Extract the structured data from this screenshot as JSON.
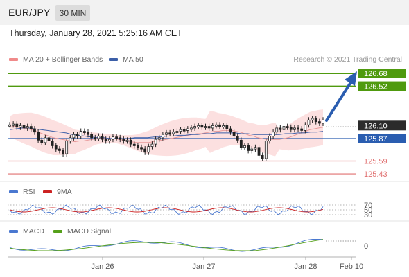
{
  "header": {
    "symbol": "EUR/JPY",
    "timeframe": "30 MIN"
  },
  "datetime": "Thursday, January 28, 2021 5:25:16 AM CET",
  "legend": {
    "ma20": "MA 20 + Bollinger Bands",
    "ma50": "MA 50",
    "credit": "Research © 2021 Trading Central",
    "rsi": "RSI",
    "rsi_ma": "9MA",
    "macd": "MACD",
    "macd_signal": "MACD Signal"
  },
  "colors": {
    "green": "#4f9a0e",
    "blue": "#2a5db0",
    "red": "#e07070",
    "dark": "#2b2b2b",
    "band": "#fbd5d5",
    "ma20": "#e89a9a",
    "ma50": "#3c5fa8",
    "candle": "#222222",
    "rsi": "#4a78d0",
    "rsi_ma": "#cc2222",
    "macd": "#4a78d0",
    "macd_signal": "#55a01a"
  },
  "chart_data": {
    "type": "line",
    "instrument": "EUR/JPY",
    "interval": "30 MIN",
    "ylim": [
      125.2,
      126.8
    ],
    "x_ticks": [
      "Jan 26",
      "Jan 27",
      "Jan 28",
      "Feb 10"
    ],
    "levels": [
      {
        "value": "126.68",
        "kind": "resistance"
      },
      {
        "value": "126.52",
        "kind": "resistance"
      },
      {
        "value": "126.10",
        "kind": "current"
      },
      {
        "value": "125.87",
        "kind": "pivot"
      },
      {
        "value": "125.59",
        "kind": "support"
      },
      {
        "value": "125.43",
        "kind": "support"
      }
    ],
    "close": [
      126.04,
      126.05,
      126.01,
      126.03,
      126.0,
      126.02,
      125.99,
      125.95,
      125.85,
      125.82,
      125.88,
      125.84,
      125.78,
      125.74,
      125.72,
      125.68,
      125.84,
      125.88,
      125.92,
      125.9,
      125.96,
      125.95,
      125.92,
      125.88,
      125.87,
      125.9,
      125.86,
      125.84,
      125.86,
      125.89,
      125.88,
      125.86,
      125.84,
      125.85,
      125.8,
      125.78,
      125.76,
      125.74,
      125.7,
      125.77,
      125.8,
      125.86,
      125.88,
      125.92,
      125.94,
      125.93,
      125.95,
      125.96,
      125.98,
      125.97,
      125.99,
      126.0,
      126.02,
      126.03,
      126.01,
      126.02,
      126.0,
      126.03,
      126.04,
      126.02,
      126.03,
      125.99,
      125.95,
      125.9,
      125.85,
      125.76,
      125.78,
      125.72,
      125.74,
      125.76,
      125.66,
      125.62,
      125.84,
      125.9,
      125.95,
      126.0,
      125.98,
      126.02,
      126.01,
      125.98,
      126.0,
      125.99,
      125.97,
      126.04,
      126.1,
      126.12,
      126.08,
      126.06,
      126.1
    ],
    "ma20": [
      126.01,
      126.02,
      126.01,
      126.0,
      125.99,
      125.98,
      125.96,
      125.94,
      125.92,
      125.9,
      125.88,
      125.87,
      125.86,
      125.85,
      125.84,
      125.83,
      125.84,
      125.84,
      125.85,
      125.86,
      125.87,
      125.87,
      125.87,
      125.87,
      125.87,
      125.86,
      125.85,
      125.84,
      125.83,
      125.82,
      125.82,
      125.82,
      125.82,
      125.83,
      125.84,
      125.85,
      125.86,
      125.87,
      125.88,
      125.89,
      125.9,
      125.91,
      125.92,
      125.93,
      125.93,
      125.94,
      125.95,
      125.96,
      125.96,
      125.97,
      125.97,
      125.97,
      125.96,
      125.95,
      125.93,
      125.91,
      125.9,
      125.88,
      125.87,
      125.86,
      125.86,
      125.86,
      125.86,
      125.87,
      125.88,
      125.9,
      125.92,
      125.94,
      125.96,
      125.98,
      125.99,
      126.0,
      126.01
    ],
    "ma50": [
      125.98,
      125.99,
      126.0,
      126.0,
      125.99,
      125.98,
      125.97,
      125.96,
      125.95,
      125.94,
      125.92,
      125.91,
      125.9,
      125.89,
      125.88,
      125.88,
      125.87,
      125.87,
      125.87,
      125.87,
      125.88,
      125.88,
      125.88,
      125.89,
      125.89,
      125.9,
      125.9,
      125.91,
      125.91,
      125.92,
      125.92,
      125.93,
      125.93,
      125.94,
      125.94,
      125.94,
      125.94,
      125.93,
      125.93,
      125.92,
      125.92,
      125.92,
      125.92,
      125.92,
      125.93,
      125.93,
      125.94,
      125.94,
      125.95,
      125.95,
      125.96
    ]
  },
  "rsi_panel": {
    "levels": [
      "70",
      "50",
      "30"
    ]
  },
  "macd_panel": {
    "zero_label": "0"
  }
}
